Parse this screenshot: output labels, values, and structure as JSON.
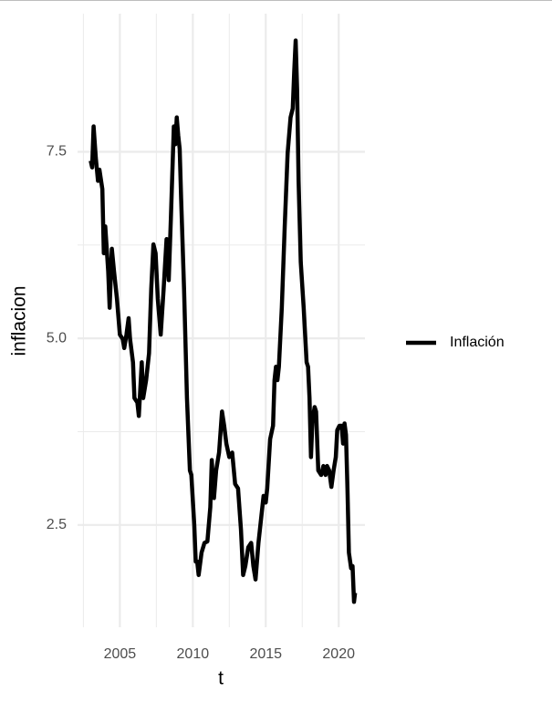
{
  "chart_data": {
    "type": "line",
    "x_label": "t",
    "y_label": "inflacion",
    "x": [
      2003.0,
      2003.1,
      2003.2,
      2003.35,
      2003.5,
      2003.6,
      2003.8,
      2003.9,
      2004.0,
      2004.2,
      2004.3,
      2004.45,
      2004.6,
      2004.8,
      2005.0,
      2005.2,
      2005.3,
      2005.45,
      2005.6,
      2005.7,
      2005.9,
      2006.0,
      2006.2,
      2006.3,
      2006.5,
      2006.6,
      2006.8,
      2007.0,
      2007.15,
      2007.3,
      2007.45,
      2007.6,
      2007.8,
      2008.0,
      2008.2,
      2008.35,
      2008.5,
      2008.7,
      2008.8,
      2008.9,
      2009.0,
      2009.1,
      2009.2,
      2009.4,
      2009.6,
      2009.8,
      2009.9,
      2010.1,
      2010.2,
      2010.3,
      2010.4,
      2010.6,
      2010.8,
      2011.0,
      2011.2,
      2011.3,
      2011.45,
      2011.6,
      2011.8,
      2012.0,
      2012.15,
      2012.3,
      2012.5,
      2012.7,
      2012.9,
      2013.1,
      2013.3,
      2013.45,
      2013.6,
      2013.8,
      2014.0,
      2014.15,
      2014.3,
      2014.5,
      2014.7,
      2014.85,
      2015.0,
      2015.1,
      2015.3,
      2015.5,
      2015.6,
      2015.7,
      2015.8,
      2015.9,
      2016.1,
      2016.3,
      2016.5,
      2016.7,
      2016.85,
      2016.95,
      2017.05,
      2017.15,
      2017.25,
      2017.4,
      2017.6,
      2017.8,
      2017.9,
      2018.0,
      2018.1,
      2018.2,
      2018.35,
      2018.45,
      2018.6,
      2018.8,
      2018.95,
      2019.1,
      2019.2,
      2019.35,
      2019.5,
      2019.65,
      2019.8,
      2019.9,
      2020.05,
      2020.2,
      2020.3,
      2020.4,
      2020.5,
      2020.6,
      2020.7,
      2020.85,
      2020.95,
      2021.05,
      2021.12
    ],
    "series": [
      {
        "name": "Inflación",
        "color": "#000000",
        "values": [
          7.38,
          7.29,
          7.84,
          7.42,
          7.11,
          7.26,
          7.0,
          6.14,
          6.5,
          5.9,
          5.41,
          6.2,
          5.9,
          5.53,
          5.05,
          4.99,
          4.87,
          5.05,
          5.27,
          4.99,
          4.68,
          4.2,
          4.14,
          3.96,
          4.68,
          4.2,
          4.44,
          4.8,
          5.66,
          6.26,
          6.14,
          5.53,
          5.05,
          5.66,
          6.33,
          5.78,
          6.63,
          7.84,
          7.6,
          7.96,
          7.72,
          7.54,
          6.87,
          5.66,
          4.2,
          3.23,
          3.17,
          2.5,
          2.01,
          2.01,
          1.83,
          2.13,
          2.26,
          2.28,
          2.74,
          3.37,
          2.86,
          3.23,
          3.47,
          4.02,
          3.83,
          3.59,
          3.41,
          3.47,
          3.05,
          2.99,
          2.44,
          1.83,
          1.95,
          2.2,
          2.26,
          1.95,
          1.77,
          2.26,
          2.62,
          2.89,
          2.8,
          2.99,
          3.65,
          3.83,
          4.44,
          4.62,
          4.44,
          4.62,
          5.41,
          6.5,
          7.48,
          7.96,
          8.08,
          8.57,
          8.99,
          8.33,
          7.11,
          6.02,
          5.41,
          4.68,
          4.62,
          4.2,
          3.41,
          3.9,
          4.08,
          4.02,
          3.23,
          3.17,
          3.29,
          3.17,
          3.29,
          3.23,
          3.01,
          3.23,
          3.41,
          3.77,
          3.83,
          3.83,
          3.59,
          3.86,
          3.71,
          2.99,
          2.13,
          1.92,
          1.95,
          1.47,
          1.59
        ]
      }
    ],
    "xlim": [
      2002.1,
      2021.8
    ],
    "xticks": [
      2005,
      2010,
      2015,
      2020
    ],
    "x_minor_ticks": [
      2002.5,
      2007.5,
      2012.5,
      2017.5
    ],
    "ylim": [
      1.13,
      9.35
    ],
    "yticks": [
      {
        "value": 2.5,
        "label": "2.5"
      },
      {
        "value": 5,
        "label": "5.0"
      },
      {
        "value": 7.5,
        "label": "7.5"
      }
    ],
    "y_minor_ticks": [
      3.75,
      6.25
    ],
    "grid": true,
    "legend_position": "right"
  }
}
